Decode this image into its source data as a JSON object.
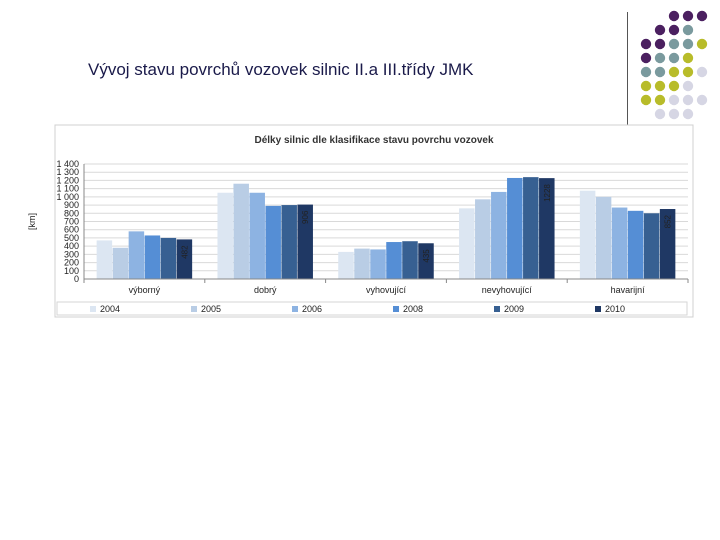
{
  "slide": {
    "title": "Vývoj stavu povrchů vozovek silnic II.a III.třídy JMK"
  },
  "decoration": {
    "dot_colors": [
      "#4b2060",
      "#7a9a9e",
      "#b8bc2a",
      "#d6d6e4"
    ],
    "dot_grid": [
      [
        null,
        null,
        0,
        0,
        0
      ],
      [
        null,
        0,
        0,
        1,
        null
      ],
      [
        0,
        0,
        1,
        1,
        2
      ],
      [
        0,
        1,
        1,
        2,
        null
      ],
      [
        1,
        1,
        2,
        2,
        3
      ],
      [
        2,
        2,
        2,
        3,
        null
      ],
      [
        2,
        2,
        3,
        3,
        3
      ],
      [
        null,
        3,
        3,
        3,
        null
      ]
    ]
  },
  "chart_data": {
    "type": "bar",
    "title": "Délky silnic dle klasifikace stavu povrchu vozovek",
    "ylabel": "[km]",
    "xlabel": "",
    "ylim": [
      0,
      1400
    ],
    "yticks": [
      0,
      100,
      200,
      300,
      400,
      500,
      600,
      700,
      800,
      900,
      1000,
      1100,
      1200,
      1300,
      1400
    ],
    "ytick_labels": [
      "0",
      "100",
      "200",
      "300",
      "400",
      "500",
      "600",
      "700",
      "800",
      "900",
      "1 000",
      "1 100",
      "1 200",
      "1 300",
      "1 400"
    ],
    "grid": true,
    "legend_position": "bottom",
    "categories": [
      "výborný",
      "dobrý",
      "vyhovující",
      "nevyhovující",
      "havarijní"
    ],
    "series": [
      {
        "name": "2004",
        "color": "#dce6f2",
        "values": [
          470,
          1050,
          330,
          860,
          1075
        ]
      },
      {
        "name": "2005",
        "color": "#b9cde5",
        "values": [
          380,
          1160,
          370,
          970,
          1000
        ]
      },
      {
        "name": "2006",
        "color": "#8db3e2",
        "values": [
          580,
          1050,
          360,
          1060,
          870
        ]
      },
      {
        "name": "2008",
        "color": "#558ed5",
        "values": [
          530,
          890,
          450,
          1230,
          830
        ]
      },
      {
        "name": "2009",
        "color": "#376092",
        "values": [
          500,
          900,
          460,
          1240,
          800
        ]
      },
      {
        "name": "2010",
        "color": "#1f3864",
        "values": [
          482,
          906,
          435,
          1228,
          852
        ]
      }
    ],
    "data_labels": [
      {
        "category": "výborný",
        "series": "2010",
        "text": "482"
      },
      {
        "category": "dobrý",
        "series": "2010",
        "text": "906"
      },
      {
        "category": "vyhovující",
        "series": "2010",
        "text": "435"
      },
      {
        "category": "nevyhovující",
        "series": "2010",
        "text": "1228"
      },
      {
        "category": "havarijní",
        "series": "2010",
        "text": "852"
      }
    ]
  }
}
